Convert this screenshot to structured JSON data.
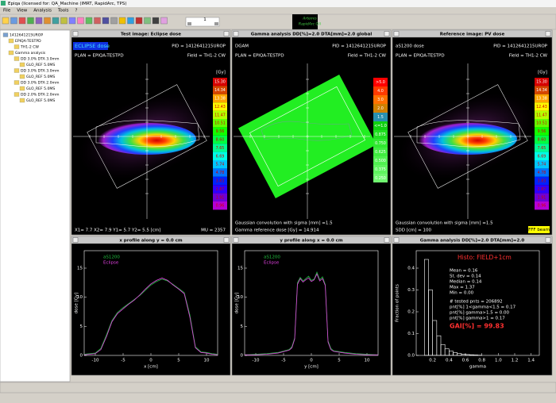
{
  "window": {
    "title": "Epiqa   (licensed for: QA_Machine   (IMRT, RapidArc, TPS)",
    "menu": [
      "File",
      "View",
      "Analysis",
      "Tools",
      "?"
    ],
    "page": "1",
    "logo": [
      "Artemis",
      "RapidArc QA"
    ]
  },
  "tree": {
    "label": "1412641215UROP",
    "children": [
      {
        "label": "EPIQA-TESTPD",
        "children": [
          {
            "label": "TH1-2 CW",
            "children": []
          }
        ]
      },
      {
        "label": "Gamma analysis",
        "children": [
          {
            "label": "DD 3.0% DTA 3.0mm",
            "children": [
              {
                "label": "GLO_REF 5.0MS",
                "children": []
              }
            ]
          },
          {
            "label": "DD 3.0% DTA 3.0mm",
            "children": [
              {
                "label": "GLO_REF 5.0MS",
                "children": []
              }
            ]
          },
          {
            "label": "DD 3.0% DTA 2.0mm",
            "children": [
              {
                "label": "GLO_REF 5.0MS",
                "children": []
              }
            ]
          },
          {
            "label": "DD 2.0% DTA 2.0mm",
            "children": [
              {
                "label": "GLO_REF 5.0MS",
                "children": []
              }
            ]
          }
        ]
      }
    ]
  },
  "image_panels": [
    {
      "title": "Test image: Eclipse dose",
      "subtitle": "ECLIPSE dose",
      "plan": "PLAN = EPIQA-TESTPD",
      "pid": "PID = 1412641215UROP",
      "field": "Field = TH1-2 CW",
      "unit": "[Gy]",
      "colorbar": [
        "15.30",
        "14.34",
        "13.38",
        "12.43",
        "11.47",
        "10.51",
        "9.56",
        "8.60",
        "7.65",
        "6.69",
        "5.74",
        "4.78",
        "3.83",
        "2.87",
        "1.91",
        "0.96"
      ],
      "footer": [
        "X1=  7.7   X2=  7.9   Y1=  5.7   Y2=  5.5   [cm]"
      ],
      "footer_right": "MU = 2357"
    },
    {
      "title": "Gamma analysis DD[%]=2.0 DTA[mm]=2.0  global",
      "subtitle": "DGAM",
      "plan": "PLAN = EPIQA-TESTPD",
      "pid": "PID = 1412641215UROP",
      "field": "Field = TH1-2 CW",
      "colorbar": [
        ">5.0",
        "4.0",
        "3.0",
        "2.0",
        "1.5",
        "<=1.0",
        "0.875",
        "0.750",
        "0.625",
        "0.500",
        "0.375",
        "0.250"
      ],
      "footer": [
        "Gaussian convolution with sigma [mm] =1.5",
        "Gamma reference dose [Gy] = 14.914"
      ]
    },
    {
      "title": "Reference image: PV dose",
      "subtitle": "aS1200 dose",
      "plan": "PLAN = EPIQA-TESTPD",
      "pid": "PID = 1412641215UROP",
      "field": "Field = TH1-2 CW",
      "unit": "[Gy]",
      "colorbar": [
        "15.30",
        "14.34",
        "13.38",
        "12.43",
        "11.47",
        "10.51",
        "9.56",
        "8.60",
        "7.65",
        "6.69",
        "5.74",
        "4.78",
        "3.83",
        "2.87",
        "1.91",
        "0.96"
      ],
      "footer": [
        "Gaussian convolution with sigma [mm] =1.5",
        "SDD [cm] = 100"
      ],
      "badge": "FFF beam"
    }
  ],
  "chart_data": [
    {
      "type": "line",
      "title": "x profile along y =   0.0 cm",
      "xlabel": "x [cm]",
      "ylabel": "dose [Gy]",
      "x": [
        -12,
        -11,
        -10,
        -9,
        -8,
        -7,
        -6,
        -5,
        -4,
        -3,
        -2,
        -1,
        0,
        1,
        2,
        3,
        4,
        5,
        6,
        7,
        8,
        9,
        10,
        11,
        12
      ],
      "series": [
        {
          "name": "aS1200",
          "color": "#22c040",
          "values": [
            0.2,
            0.3,
            0.4,
            1.2,
            3.5,
            6.0,
            7.4,
            8.2,
            8.9,
            9.6,
            10.3,
            11.2,
            12.1,
            12.7,
            13.1,
            12.8,
            12.2,
            11.5,
            10.8,
            7.0,
            1.5,
            0.6,
            0.5,
            0.3,
            0.2
          ]
        },
        {
          "name": "Eclipse",
          "color": "#e040e0",
          "values": [
            0.1,
            0.2,
            0.3,
            1.0,
            3.2,
            5.8,
            7.2,
            8.0,
            8.8,
            9.5,
            10.4,
            11.4,
            12.3,
            12.9,
            13.3,
            12.9,
            12.1,
            11.4,
            10.6,
            6.6,
            1.3,
            0.5,
            0.4,
            0.2,
            0.1
          ]
        }
      ],
      "xlim": [
        -12,
        12
      ],
      "ylim": [
        0,
        18
      ],
      "xticks": [
        -10,
        -5,
        0,
        5,
        10
      ],
      "yticks": [
        0,
        5,
        10,
        15
      ]
    },
    {
      "type": "line",
      "title": "y profile along x =   0.0 cm",
      "xlabel": "y [cm]",
      "ylabel": "dose [Gy]",
      "x": [
        -12,
        -10,
        -8,
        -6,
        -4,
        -3.5,
        -3,
        -2.5,
        -2,
        -1.5,
        -1,
        -0.5,
        0,
        0.5,
        1,
        1.5,
        2,
        2.5,
        3,
        3.5,
        4,
        6,
        8,
        10,
        12
      ],
      "series": [
        {
          "name": "aS1200",
          "color": "#22c040",
          "values": [
            0.1,
            0.2,
            0.3,
            0.5,
            1.0,
            1.5,
            3.0,
            12.5,
            13.4,
            12.8,
            13.2,
            13.6,
            12.9,
            13.1,
            14.3,
            13.0,
            13.5,
            12.2,
            2.5,
            1.2,
            0.8,
            0.5,
            0.3,
            0.2,
            0.1
          ]
        },
        {
          "name": "Eclipse",
          "color": "#e040e0",
          "values": [
            0.1,
            0.1,
            0.2,
            0.4,
            0.9,
            1.3,
            2.8,
            12.2,
            13.2,
            12.6,
            13.0,
            13.3,
            12.7,
            13.0,
            14.0,
            12.8,
            13.2,
            12.0,
            2.3,
            1.0,
            0.7,
            0.4,
            0.2,
            0.1,
            0.1
          ]
        }
      ],
      "xlim": [
        -12,
        12
      ],
      "ylim": [
        0,
        18
      ],
      "xticks": [
        -10,
        -5,
        0,
        5,
        10
      ],
      "yticks": [
        0,
        5,
        10,
        15
      ]
    },
    {
      "type": "histogram",
      "title": "Gamma analysis DD[%]=2.0 DTA[mm]=2.0",
      "xlabel": "gamma",
      "ylabel": "Fraction of points",
      "bins": [
        0.1,
        0.15,
        0.2,
        0.25,
        0.3,
        0.35,
        0.4,
        0.45,
        0.5,
        0.55,
        0.6,
        0.65,
        0.7,
        0.75,
        0.8
      ],
      "counts": [
        0.44,
        0.3,
        0.16,
        0.09,
        0.05,
        0.03,
        0.02,
        0.013,
        0.009,
        0.006,
        0.004,
        0.003,
        0.002,
        0.001
      ],
      "color": "#ffffff",
      "xlim": [
        0,
        1.5
      ],
      "ylim": [
        0,
        0.48
      ],
      "xticks": [
        0.2,
        0.4,
        0.6,
        0.8,
        1.0,
        1.2,
        1.4
      ],
      "yticks": [
        {
          "value": 0,
          "label": "0.0"
        },
        0.1,
        0.2,
        0.3,
        0.4
      ],
      "annotation_title": "Histo: FIELD+1cm",
      "annotations": [
        "Mean   =  0.16",
        "St. dev =  0.14",
        "Median =  0.14",
        "Max    =  1.37",
        "Min     =  0.00"
      ],
      "annotations2": [
        "# tested pnts =  206892",
        "pnt[%] 1<gamma<1.5 =  0.17",
        "pnt[%] gamma>1.5 =  0.00",
        "pnt[%] gamma>1 =  0.17"
      ],
      "result": "GAI[%]  =  99.83"
    }
  ]
}
